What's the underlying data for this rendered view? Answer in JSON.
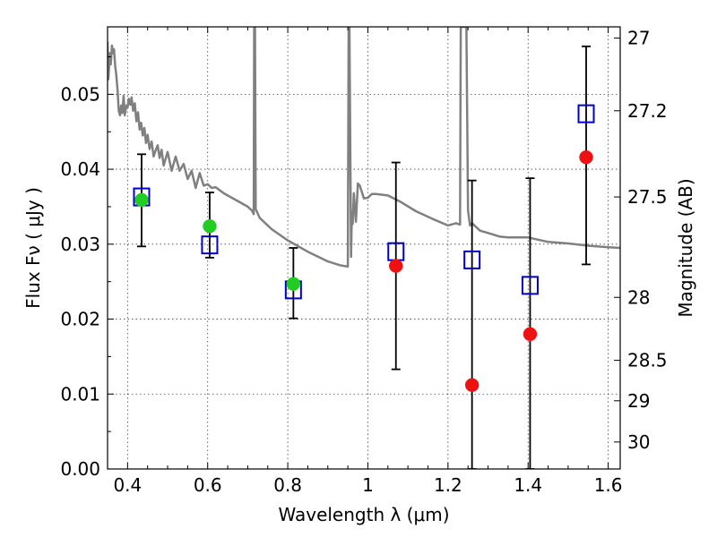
{
  "chart_data": {
    "type": "scatter",
    "xlabel": "Wavelength  λ (μm)",
    "ylabel": "Flux  Fν ( μJy )",
    "ylabel_right": "Magnitude (AB)",
    "xlim": [
      0.35,
      1.63
    ],
    "ylim": [
      0.0,
      0.059
    ],
    "x_ticks": [
      0.4,
      0.6,
      0.8,
      1.0,
      1.2,
      1.4,
      1.6
    ],
    "x_tick_labels": [
      "0.4",
      "0.6",
      "0.8",
      "1",
      "1.2",
      "1.4",
      "1.6"
    ],
    "y_ticks": [
      0.0,
      0.01,
      0.02,
      0.03,
      0.04,
      0.05
    ],
    "y_tick_labels": [
      "0.00",
      "0.01",
      "0.02",
      "0.03",
      "0.04",
      "0.05"
    ],
    "right_ticks": [
      {
        "label": "27",
        "flux": 0.0575
      },
      {
        "label": "27.2",
        "flux": 0.0478
      },
      {
        "label": "27.5",
        "flux": 0.0363
      },
      {
        "label": "28",
        "flux": 0.0229
      },
      {
        "label": "28.5",
        "flux": 0.0145
      },
      {
        "label": "29",
        "flux": 0.0091
      },
      {
        "label": "30",
        "flux": 0.0036
      }
    ],
    "grid": true,
    "series": [
      {
        "marker": "open-square",
        "color": "#0000cc",
        "x": [
          0.435,
          0.605,
          0.814,
          1.07,
          1.26,
          1.405,
          1.545
        ],
        "y": [
          0.0363,
          0.0299,
          0.0239,
          0.029,
          0.0279,
          0.0245,
          0.0474
        ],
        "yerr_low": [
          0.0297,
          0.0282,
          0.0201,
          0.0133,
          0.0,
          0.0,
          0.0273
        ],
        "yerr_high": [
          0.042,
          0.0369,
          0.0295,
          0.0409,
          0.0385,
          0.0388,
          0.0564
        ]
      },
      {
        "marker": "filled-circle",
        "color": "#22cc22",
        "x": [
          0.435,
          0.605,
          0.814
        ],
        "y": [
          0.0359,
          0.0324,
          0.0247
        ]
      },
      {
        "marker": "filled-circle",
        "color": "#ee1111",
        "x": [
          1.07,
          1.26,
          1.405,
          1.545
        ],
        "y": [
          0.0271,
          0.0112,
          0.018,
          0.0416
        ]
      },
      {
        "marker": "line",
        "color": "#808080",
        "x": [
          0.35,
          0.352,
          0.356,
          0.358,
          0.361,
          0.364,
          0.366,
          0.369,
          0.372,
          0.375,
          0.378,
          0.381,
          0.384,
          0.387,
          0.39,
          0.393,
          0.397,
          0.4,
          0.403,
          0.407,
          0.41,
          0.414,
          0.418,
          0.422,
          0.426,
          0.43,
          0.434,
          0.438,
          0.442,
          0.446,
          0.45,
          0.455,
          0.46,
          0.465,
          0.47,
          0.475,
          0.48,
          0.485,
          0.49,
          0.5,
          0.51,
          0.52,
          0.53,
          0.54,
          0.55,
          0.56,
          0.57,
          0.58,
          0.59,
          0.6,
          0.61,
          0.62,
          0.64,
          0.66,
          0.68,
          0.7,
          0.71,
          0.715,
          0.716,
          0.718,
          0.72,
          0.73,
          0.76,
          0.8,
          0.85,
          0.9,
          0.93,
          0.95,
          0.952,
          0.954,
          0.958,
          0.96,
          0.962,
          0.965,
          0.97,
          0.975,
          0.98,
          0.99,
          1.0,
          1.01,
          1.02,
          1.05,
          1.08,
          1.12,
          1.16,
          1.2,
          1.22,
          1.23,
          1.232,
          1.234,
          1.238,
          1.242,
          1.246,
          1.25,
          1.255,
          1.26,
          1.28,
          1.3,
          1.33,
          1.35,
          1.4,
          1.45,
          1.5,
          1.55,
          1.6,
          1.63
        ],
        "y": [
          0.057,
          0.052,
          0.0555,
          0.054,
          0.0565,
          0.0555,
          0.056,
          0.0538,
          0.0525,
          0.0505,
          0.0478,
          0.0472,
          0.0485,
          0.0475,
          0.0498,
          0.0472,
          0.0485,
          0.0482,
          0.0494,
          0.0486,
          0.0496,
          0.0478,
          0.0488,
          0.0464,
          0.0476,
          0.0453,
          0.0462,
          0.0445,
          0.0455,
          0.0435,
          0.0446,
          0.0427,
          0.0437,
          0.0417,
          0.0425,
          0.0432,
          0.0415,
          0.0426,
          0.0405,
          0.0423,
          0.0398,
          0.0417,
          0.0398,
          0.0407,
          0.0387,
          0.0398,
          0.0375,
          0.0395,
          0.0378,
          0.038,
          0.0375,
          0.0376,
          0.0368,
          0.0362,
          0.0356,
          0.035,
          0.0345,
          0.034,
          0.059,
          0.059,
          0.0347,
          0.0335,
          0.032,
          0.0305,
          0.029,
          0.0277,
          0.0272,
          0.027,
          0.059,
          0.059,
          0.0283,
          0.0343,
          0.0327,
          0.0368,
          0.033,
          0.0381,
          0.0378,
          0.0361,
          0.0362,
          0.0367,
          0.0367,
          0.0365,
          0.0357,
          0.0344,
          0.0334,
          0.0325,
          0.0328,
          0.0326,
          0.059,
          0.059,
          0.059,
          0.059,
          0.059,
          0.0345,
          0.0325,
          0.0328,
          0.0318,
          0.0315,
          0.031,
          0.0309,
          0.0309,
          0.0303,
          0.0301,
          0.0298,
          0.0296,
          0.0295
        ]
      }
    ]
  }
}
